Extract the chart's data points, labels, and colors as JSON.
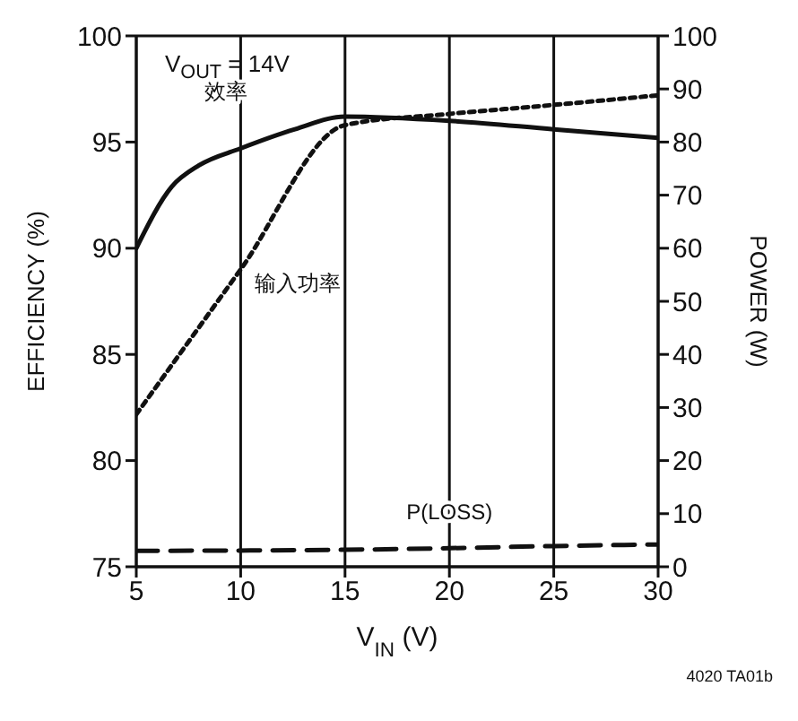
{
  "chart_data": {
    "type": "line",
    "xlabel": "V$_{IN}$ (V)",
    "ylabel": "EFFICIENCY (%)",
    "y2label": "POWER (W)",
    "xlim": [
      5,
      30
    ],
    "xticks": [
      5,
      10,
      15,
      20,
      25,
      30
    ],
    "ylim": [
      75,
      100
    ],
    "yticks": [
      75,
      80,
      85,
      90,
      95,
      100
    ],
    "y2lim": [
      0,
      100
    ],
    "y2ticks": [
      0,
      10,
      20,
      30,
      40,
      50,
      60,
      70,
      80,
      90,
      100
    ],
    "grid": true,
    "legend": false,
    "marker": "none",
    "annotations": [
      "V$_{OUT}$ = 14V",
      "4020 TA01b"
    ],
    "series": [
      {
        "name": "效率",
        "color": "#111111",
        "line_style": "solid",
        "x": [
          5,
          6.7,
          8,
          10,
          12.6,
          15,
          20,
          25,
          30
        ],
        "values": [
          90,
          92.9,
          93.9,
          94.7,
          95.6,
          96.2,
          96,
          95.6,
          95.2
        ]
      },
      {
        "name": "输入功率",
        "color": "#111111",
        "line_style": "dotted",
        "axis": "y2",
        "x": [
          5,
          10,
          15,
          20,
          25,
          30
        ],
        "values": [
          28.7,
          56,
          83.2,
          85.3,
          87,
          88.8
        ]
      },
      {
        "name": "P(LOSS)",
        "color": "#111111",
        "line_style": "dashed",
        "axis": "y2",
        "x": [
          5,
          15,
          20,
          25,
          30
        ],
        "values": [
          3,
          3.2,
          3.5,
          3.9,
          4.2
        ]
      }
    ]
  }
}
